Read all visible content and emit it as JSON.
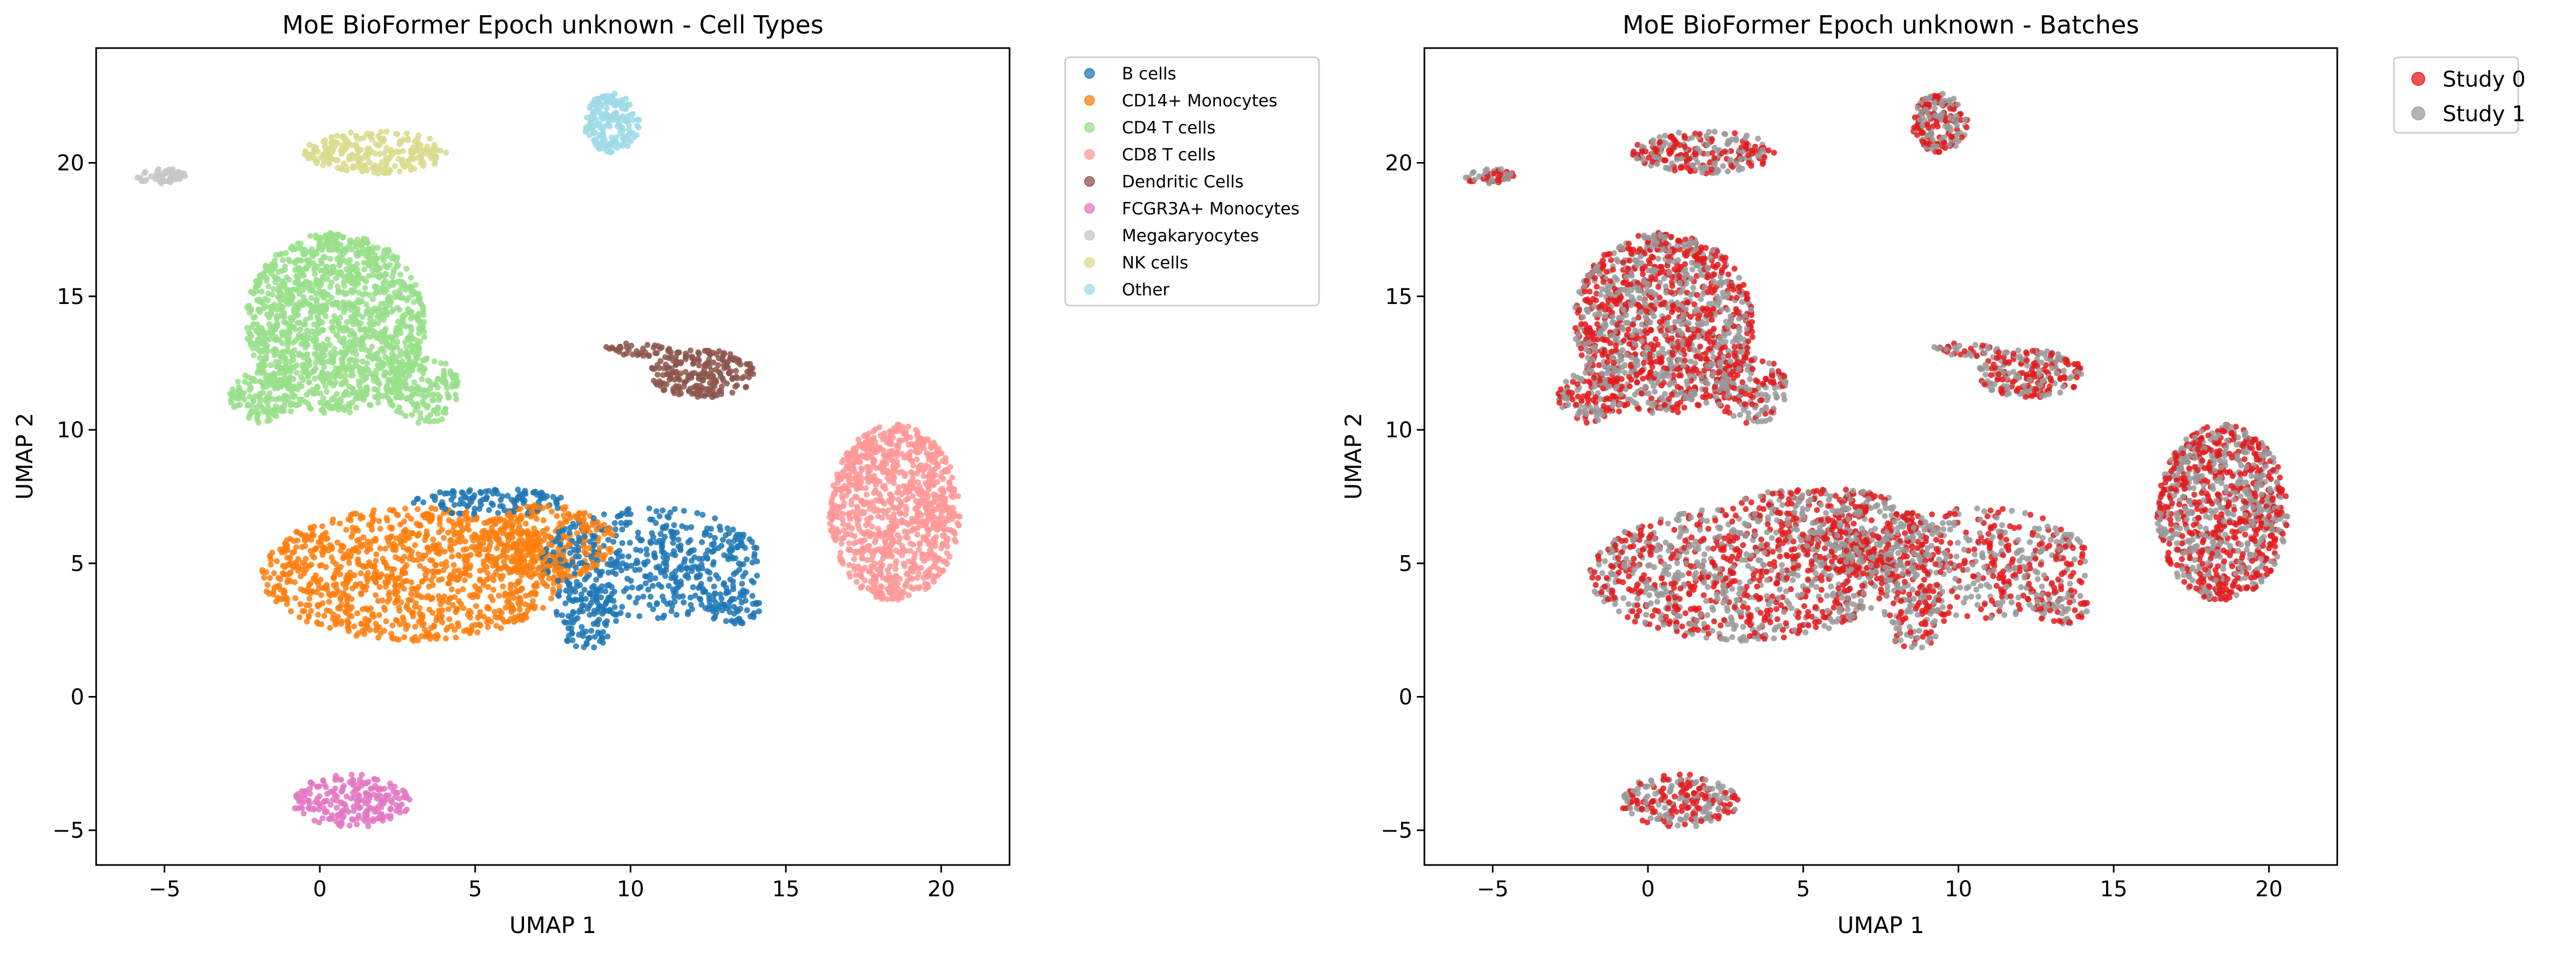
{
  "chart_data": [
    {
      "type": "scatter",
      "title": "MoE BioFormer Epoch unknown - Cell Types",
      "xlabel": "UMAP 1",
      "ylabel": "UMAP 2",
      "xlim": [
        -7.2,
        22.2
      ],
      "ylim": [
        -6.3,
        24.3
      ],
      "xticks": [
        -5,
        0,
        5,
        10,
        15,
        20
      ],
      "yticks": [
        -5,
        0,
        5,
        10,
        15,
        20
      ],
      "xtick_labels": [
        "−5",
        "0",
        "5",
        "10",
        "15",
        "20"
      ],
      "ytick_labels": [
        "−5",
        "0",
        "5",
        "10",
        "15",
        "20"
      ],
      "grid": false,
      "legend_position": "outside-upper-right",
      "legend_entries": [
        "B cells",
        "CD14+ Monocytes",
        "CD4 T cells",
        "CD8 T cells",
        "Dendritic Cells",
        "FCGR3A+ Monocytes",
        "Megakaryocytes",
        "NK cells",
        "Other"
      ],
      "series_colors": [
        "#1f77b4",
        "#ff7f0e",
        "#98df8a",
        "#ff9896",
        "#8c564b",
        "#e377c2",
        "#c7c7c7",
        "#dbdb8d",
        "#9edae5"
      ],
      "series": [
        {
          "name": "B cells",
          "clusters": [
            {
              "shape": "ellipse",
              "cx": 10.6,
              "cy": 5.0,
              "rx": 3.6,
              "ry": 2.1,
              "n": 480
            },
            {
              "shape": "ellipse",
              "cx": 8.6,
              "cy": 3.0,
              "rx": 1.0,
              "ry": 1.2,
              "n": 90
            },
            {
              "shape": "ellipse",
              "cx": 13.3,
              "cy": 3.4,
              "rx": 0.9,
              "ry": 0.7,
              "n": 60
            },
            {
              "shape": "ellipse",
              "cx": 5.5,
              "cy": 7.3,
              "rx": 2.5,
              "ry": 0.5,
              "n": 120
            }
          ]
        },
        {
          "name": "CD14+ Monocytes",
          "clusters": [
            {
              "shape": "ellipse",
              "cx": 3.0,
              "cy": 4.6,
              "rx": 4.9,
              "ry": 2.5,
              "n": 1050
            },
            {
              "shape": "ellipse",
              "cx": 7.3,
              "cy": 5.8,
              "rx": 2.2,
              "ry": 1.4,
              "n": 300
            }
          ]
        },
        {
          "name": "CD4 T cells",
          "clusters": [
            {
              "shape": "ellipse",
              "cx": 0.5,
              "cy": 14.0,
              "rx": 2.9,
              "ry": 3.4,
              "n": 1300
            },
            {
              "shape": "ellipse",
              "cx": 3.3,
              "cy": 11.5,
              "rx": 1.2,
              "ry": 1.3,
              "n": 160
            },
            {
              "shape": "ellipse",
              "cx": -1.8,
              "cy": 11.2,
              "rx": 1.1,
              "ry": 1.0,
              "n": 120
            }
          ]
        },
        {
          "name": "CD8 T cells",
          "clusters": [
            {
              "shape": "ellipse",
              "cx": 18.5,
              "cy": 6.9,
              "rx": 2.1,
              "ry": 3.3,
              "n": 950
            }
          ]
        },
        {
          "name": "Dendritic Cells",
          "clusters": [
            {
              "shape": "ellipse",
              "cx": 12.3,
              "cy": 12.1,
              "rx": 1.7,
              "ry": 0.9,
              "n": 220
            },
            {
              "shape": "ellipse",
              "cx": 10.2,
              "cy": 13.0,
              "rx": 1.2,
              "ry": 0.25,
              "n": 40
            }
          ]
        },
        {
          "name": "FCGR3A+ Monocytes",
          "clusters": [
            {
              "shape": "ellipse",
              "cx": 1.0,
              "cy": -3.9,
              "rx": 1.9,
              "ry": 1.0,
              "n": 220
            }
          ]
        },
        {
          "name": "Megakaryocytes",
          "clusters": [
            {
              "shape": "ellipse",
              "cx": -5.1,
              "cy": 19.5,
              "rx": 0.8,
              "ry": 0.3,
              "n": 55
            }
          ]
        },
        {
          "name": "NK cells",
          "clusters": [
            {
              "shape": "ellipse",
              "cx": 1.8,
              "cy": 20.4,
              "rx": 2.3,
              "ry": 0.8,
              "n": 240
            }
          ]
        },
        {
          "name": "Other",
          "clusters": [
            {
              "shape": "ellipse",
              "cx": 9.4,
              "cy": 21.5,
              "rx": 0.9,
              "ry": 1.1,
              "n": 180
            }
          ]
        }
      ]
    },
    {
      "type": "scatter",
      "title": "MoE BioFormer Epoch unknown - Batches",
      "xlabel": "UMAP 1",
      "ylabel": "UMAP 2",
      "xlim": [
        -7.2,
        22.2
      ],
      "ylim": [
        -6.3,
        24.3
      ],
      "xticks": [
        -5,
        0,
        5,
        10,
        15,
        20
      ],
      "yticks": [
        -5,
        0,
        5,
        10,
        15,
        20
      ],
      "xtick_labels": [
        "−5",
        "0",
        "5",
        "10",
        "15",
        "20"
      ],
      "ytick_labels": [
        "−5",
        "0",
        "5",
        "10",
        "15",
        "20"
      ],
      "grid": false,
      "legend_position": "outside-upper-right",
      "legend_entries": [
        "Study 0",
        "Study 1"
      ],
      "series_colors": [
        "#e41a1c",
        "#999999"
      ],
      "series": [
        {
          "name": "Study 0",
          "share": 0.5
        },
        {
          "name": "Study 1",
          "share": 0.5
        }
      ]
    }
  ]
}
